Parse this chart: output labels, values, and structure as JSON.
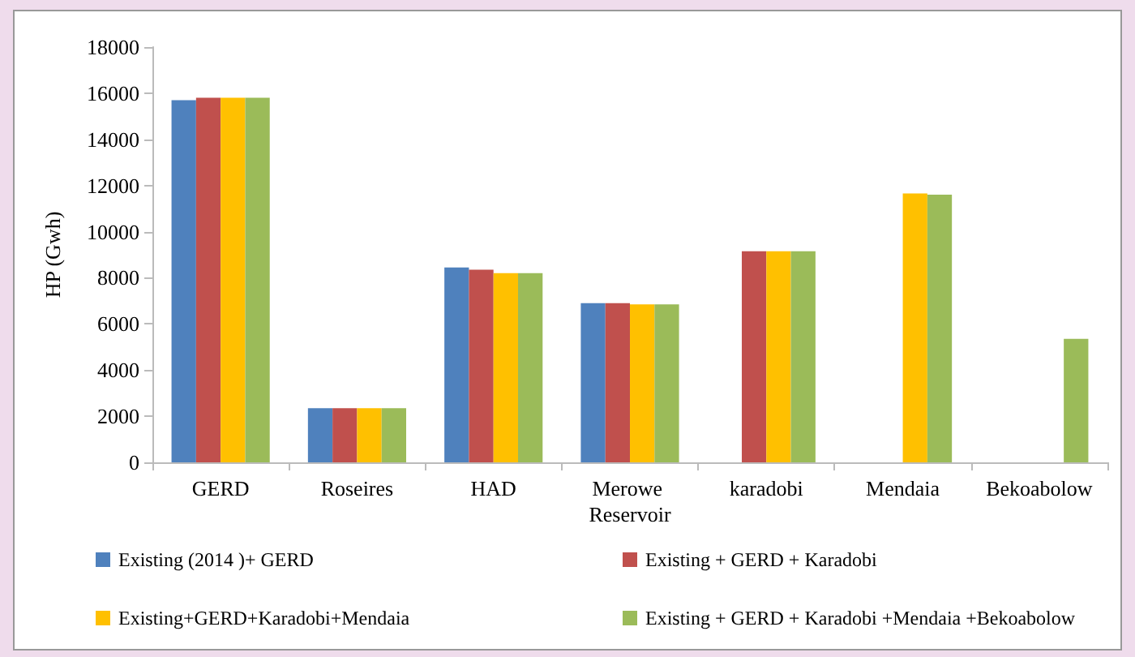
{
  "chart_data": {
    "type": "bar",
    "ylabel": "HP (Gwh)",
    "categories": [
      "GERD",
      "Roseires",
      "HAD",
      "Merowe Reservoir",
      "karadobi",
      "Mendaia",
      "Bekoabolow"
    ],
    "series": [
      {
        "name": "Existing (2014 )+ GERD",
        "color": "#4f81bd",
        "values": [
          15700,
          2350,
          8450,
          6900,
          null,
          null,
          null
        ]
      },
      {
        "name": "Existing + GERD + Karadobi",
        "color": "#c0504d",
        "values": [
          15800,
          2350,
          8350,
          6900,
          9150,
          null,
          null
        ]
      },
      {
        "name": "Existing+GERD+Karadobi+Mendaia",
        "color": "#ffc000",
        "values": [
          15800,
          2350,
          8200,
          6850,
          9150,
          11650,
          null
        ]
      },
      {
        "name": "Existing + GERD + Karadobi +Mendaia +Bekoabolow",
        "color": "#9bbb59",
        "values": [
          15800,
          2350,
          8200,
          6850,
          9150,
          11600,
          5350
        ]
      }
    ],
    "ylim": [
      0,
      18000
    ],
    "yticks": [
      0,
      2000,
      4000,
      6000,
      8000,
      10000,
      12000,
      14000,
      16000,
      18000
    ],
    "grid": false,
    "legend": "bottom"
  }
}
